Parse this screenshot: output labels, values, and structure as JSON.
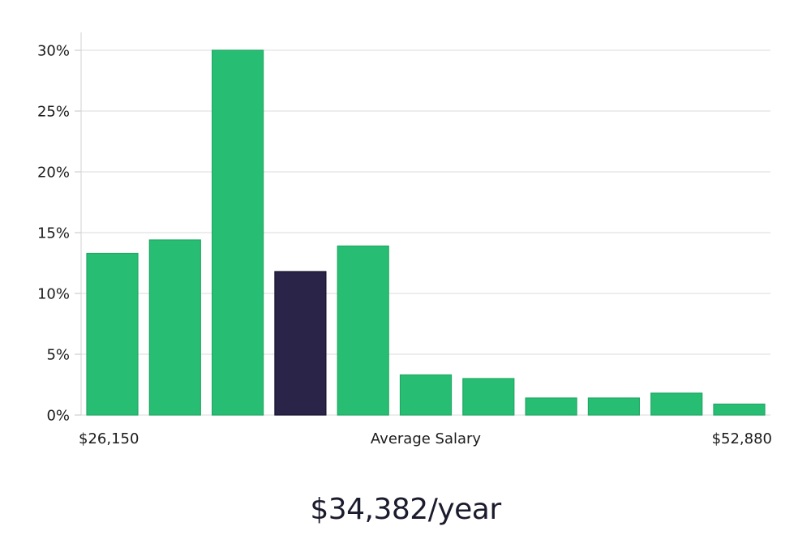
{
  "chart_data": {
    "type": "bar",
    "values": [
      13.3,
      14.4,
      30.0,
      11.8,
      13.9,
      3.3,
      3.0,
      1.4,
      1.4,
      1.8,
      0.9
    ],
    "highlight_index": 3,
    "ylim": [
      0,
      30
    ],
    "yticks": [
      0,
      5,
      10,
      15,
      20,
      25,
      30
    ],
    "ytick_labels": [
      "0%",
      "5%",
      "10%",
      "15%",
      "20%",
      "25%",
      "30%"
    ],
    "x_min_label": "$26,150",
    "x_center_label": "Average Salary",
    "x_max_label": "$52,880",
    "grid": true,
    "colors": {
      "bar": "#27be73",
      "bar_edge": "#1fa863",
      "highlight": "#2a2548",
      "highlight_edge": "#17142e"
    }
  },
  "caption": "$34,382/year"
}
